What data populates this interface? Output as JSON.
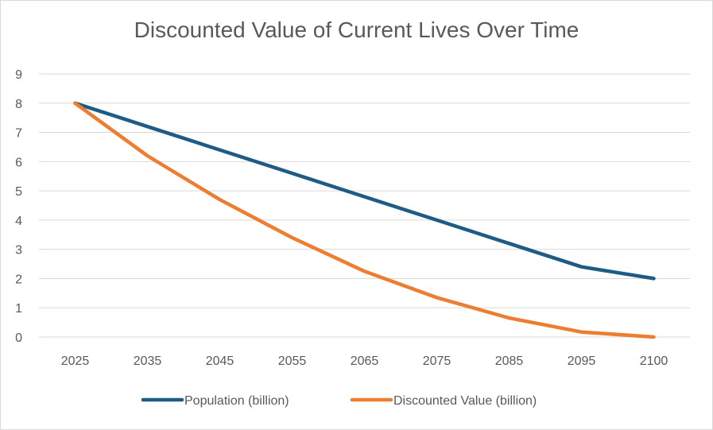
{
  "chart_data": {
    "type": "line",
    "title": "Discounted Value of Current Lives Over Time",
    "categories": [
      "2025",
      "2035",
      "2045",
      "2055",
      "2065",
      "2075",
      "2085",
      "2095",
      "2100"
    ],
    "ylim": [
      0,
      9
    ],
    "yticks": [
      0,
      1,
      2,
      3,
      4,
      5,
      6,
      7,
      8,
      9
    ],
    "grid": true,
    "legend": "bottom",
    "series": [
      {
        "name": "Population (billion)",
        "color": "#1f5c85",
        "values": [
          8.0,
          7.2,
          6.4,
          5.6,
          4.8,
          4.0,
          3.2,
          2.4,
          2.0
        ]
      },
      {
        "name": "Discounted Value (billion)",
        "color": "#ed7d31",
        "values": [
          8.0,
          6.2,
          4.7,
          3.4,
          2.25,
          1.35,
          0.65,
          0.17,
          0.0
        ]
      }
    ]
  }
}
